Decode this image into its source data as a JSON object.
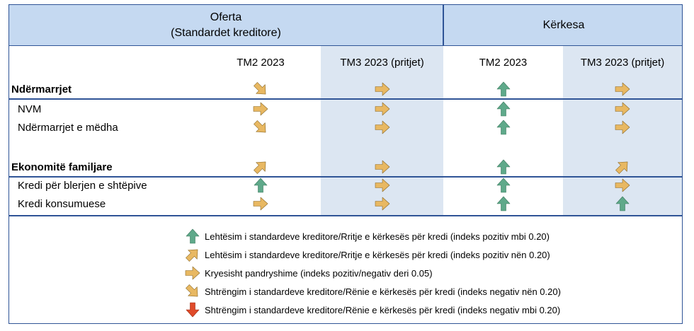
{
  "header": {
    "offer_line1": "Oferta",
    "offer_line2": "(Standardet kreditore)",
    "demand": "Kërkesa"
  },
  "columns": [
    "TM2 2023",
    "TM3 2023 (pritjet)",
    "TM2 2023",
    "TM3 2023 (pritjet)"
  ],
  "rows": [
    {
      "label": "Ndërmarrjet",
      "bold": true,
      "icons": [
        "moderate-tightening-icon",
        "stable-icon",
        "strong-easing-icon",
        "stable-icon"
      ]
    },
    {
      "label": "NVM",
      "bold": false,
      "icons": [
        "stable-icon",
        "stable-icon",
        "strong-easing-icon",
        "stable-icon"
      ]
    },
    {
      "label": "Ndërmarrjet e mëdha",
      "bold": false,
      "icons": [
        "moderate-tightening-icon",
        "stable-icon",
        "strong-easing-icon",
        "stable-icon"
      ]
    },
    {
      "label": "Ekonomitë familjare",
      "bold": true,
      "icons": [
        "moderate-easing-icon",
        "stable-icon",
        "strong-easing-icon",
        "moderate-easing-icon"
      ]
    },
    {
      "label": "Kredi për blerjen e shtëpive",
      "bold": false,
      "icons": [
        "strong-easing-icon",
        "stable-icon",
        "strong-easing-icon",
        "stable-icon"
      ]
    },
    {
      "label": "Kredi konsumuese",
      "bold": false,
      "icons": [
        "stable-icon",
        "stable-icon",
        "strong-easing-icon",
        "strong-easing-icon"
      ]
    }
  ],
  "legend": [
    {
      "icon": "strong-easing-icon",
      "text": "Lehtësim i standardeve kreditore/Rritje e kërkesës për kredi (indeks pozitiv mbi 0.20)"
    },
    {
      "icon": "moderate-easing-icon",
      "text": "Lehtësim i standardeve kreditore/Rritje e kërkesës për kredi (indeks pozitiv nën 0.20)"
    },
    {
      "icon": "stable-icon",
      "text": "Kryesisht pandryshime (indeks pozitiv/negativ deri 0.05)"
    },
    {
      "icon": "moderate-tightening-icon",
      "text": "Shtrëngim i standardeve kreditore/Rënie e kërkesës për kredi (indeks negativ nën 0.20)"
    },
    {
      "icon": "strong-tightening-icon",
      "text": "Shtrëngim i standardeve kreditore/Rënie e kërkesës për kredi (indeks negativ mbi 0.20)"
    }
  ],
  "colors": {
    "border": "#2f5496",
    "header_bg": "#c5d9f1",
    "shade_bg": "#dce6f2",
    "arrow_green": "#5fa98a",
    "arrow_tan": "#e8b862",
    "arrow_red": "#e04b2a"
  }
}
